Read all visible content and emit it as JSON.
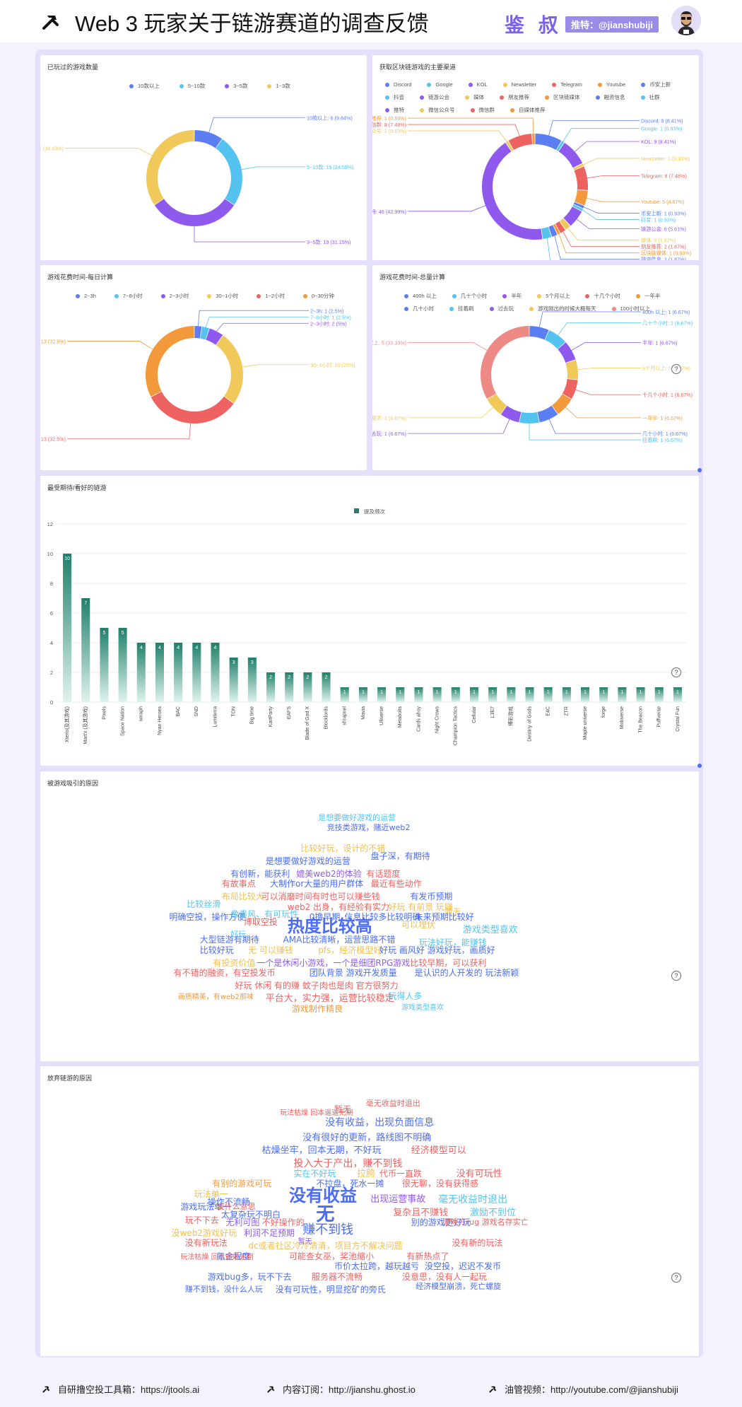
{
  "header": {
    "title": "Web 3 玩家关于链游赛道的调查反馈",
    "brand": "鉴 叔",
    "tuite": "推特：@jianshubiji"
  },
  "panels": {
    "p1_title": "已玩过的游戏数量",
    "p2_title": "获取区块链游戏的主要渠道",
    "p3_title": "游戏花费时间-每日计算",
    "p4_title": "游戏花费时间-总量计算",
    "p5_title": "最受期待/看好的链游",
    "p6_title": "被游戏吸引的原因",
    "p7_title": "放弃链游的原因"
  },
  "donut1": {
    "slices": [
      {
        "name": "10款以上",
        "value": 6,
        "label": "10款以上: 6 (9.84%)",
        "color": "#5b7ff3"
      },
      {
        "name": "5~10款",
        "value": 15,
        "label": "5~10款: 15 (24.59%)",
        "color": "#55c3ef"
      },
      {
        "name": "3~5款",
        "value": 19,
        "label": "3~5款: 19 (31.15%)",
        "color": "#8f59ee"
      },
      {
        "name": "1~3款",
        "value": 21,
        "label": "1~3款: 21 (34.43%)",
        "color": "#f0c95a"
      }
    ]
  },
  "donut2": {
    "slices": [
      {
        "name": "Discord",
        "value": 9,
        "label": "Discord: 9 (8.41%)",
        "color": "#5b7ff3"
      },
      {
        "name": "Google",
        "value": 1,
        "label": "Google: 1 (0.93%)",
        "color": "#55c3ef"
      },
      {
        "name": "KOL",
        "value": 9,
        "label": "KOL: 9 (8.41%)",
        "color": "#8f59ee"
      },
      {
        "name": "Newsletter",
        "value": 1,
        "label": "Newsletter: 1 (0.93%)",
        "color": "#f0c95a"
      },
      {
        "name": "Telegram",
        "value": 8,
        "label": "Telegram: 8 (7.48%)",
        "color": "#ee6262"
      },
      {
        "name": "Youtube",
        "value": 5,
        "label": "Youtube: 5 (4.67%)",
        "color": "#f29a3b"
      },
      {
        "name": "币安上新",
        "value": 1,
        "label": "币安上新: 1 (0.93%)",
        "color": "#5b7ff3"
      },
      {
        "name": "抖音",
        "value": 1,
        "label": "抖音: 1 (0.93%)",
        "color": "#55c3ef"
      },
      {
        "name": "链游公会",
        "value": 6,
        "label": "链游公会: 6 (5.61%)",
        "color": "#8f59ee"
      },
      {
        "name": "媒体",
        "value": 2,
        "label": "媒体: 2 (1.87%)",
        "color": "#f0c95a"
      },
      {
        "name": "朋友推荐",
        "value": 2,
        "label": "朋友推荐: 2 (1.87%)",
        "color": "#ee6262"
      },
      {
        "name": "区块链媒体",
        "value": 1,
        "label": "区块链媒体: 1 (0.93%)",
        "color": "#f29a3b"
      },
      {
        "name": "融资信息",
        "value": 2,
        "label": "融资信息: 2 (1.87%)",
        "color": "#5b7ff3"
      },
      {
        "name": "社群",
        "value": 3,
        "label": "社群: 3 (2.8%)",
        "color": "#55c3ef"
      },
      {
        "name": "推特",
        "value": 46,
        "label": "推特: 46 (42.99%)",
        "color": "#8f59ee"
      },
      {
        "name": "微信公众号",
        "value": 1,
        "label": "微信公众号: 1 (0.93%)",
        "color": "#f0c95a"
      },
      {
        "name": "微信群",
        "value": 8,
        "label": "微信群: 8 (7.48%)",
        "color": "#ee6262"
      },
      {
        "name": "自媒体推荐",
        "value": 1,
        "label": "自媒体推荐: 1 (0.93%)",
        "color": "#f29a3b"
      }
    ]
  },
  "donut3": {
    "slices": [
      {
        "name": "2~3h",
        "value": 1,
        "label": "2~3h: 1 (2.5%)",
        "color": "#5b7ff3"
      },
      {
        "name": "7~8小时",
        "value": 1,
        "label": "7~8小时: 1 (2.5%)",
        "color": "#55c3ef"
      },
      {
        "name": "2~3小时",
        "value": 2,
        "label": "2~3小时: 2 (5%)",
        "color": "#8f59ee"
      },
      {
        "name": "30~1小时",
        "value": 10,
        "label": "30~1小时: 10 (25%)",
        "color": "#f0c95a"
      },
      {
        "name": "1~2小时",
        "value": 13,
        "label": "1~2小时: 13 (32.5%)",
        "color": "#ee6262"
      },
      {
        "name": "0~30分钟",
        "value": 13,
        "label": "0~30分钟: 13 (32.5%)",
        "color": "#f29a3b"
      }
    ]
  },
  "donut4": {
    "slices": [
      {
        "name": "400h 以上",
        "value": 1,
        "label": "400h 以上: 1 (6.67%)",
        "color": "#5b7ff3"
      },
      {
        "name": "几十个小时",
        "value": 1,
        "label": "几十个小时: 1 (6.67%)",
        "color": "#55c3ef"
      },
      {
        "name": "半年",
        "value": 1,
        "label": "半年: 1 (6.67%)",
        "color": "#8f59ee"
      },
      {
        "name": "5个月以上",
        "value": 1,
        "label": "5个月以上: 1 (6.67%)",
        "color": "#f0c95a"
      },
      {
        "name": "十几个小时",
        "value": 1,
        "label": "十几个小时: 1 (6.67%)",
        "color": "#ee6262"
      },
      {
        "name": "一年半",
        "value": 1,
        "label": "一年半: 1 (6.67%)",
        "color": "#f29a3b"
      },
      {
        "name": "几十小时",
        "value": 1,
        "label": "几十小时: 1 (6.67%)",
        "color": "#5b7ff3"
      },
      {
        "name": "挂着刷",
        "value": 1,
        "label": "挂着刷: 1 (6.67%)",
        "color": "#55c3ef"
      },
      {
        "name": "过去玩",
        "value": 1,
        "label": "过去玩: 1 (6.67%)",
        "color": "#8f59ee"
      },
      {
        "name": "游戏刚出的时候大概每天",
        "value": 1,
        "label": "游戏刚出的时候大概每天: 1 (6.67%)",
        "color": "#f0c95a"
      },
      {
        "name": "100小时以上",
        "value": 5,
        "label": "100小时以上: 5 (33.33%)",
        "color": "#ee8a86"
      }
    ]
  },
  "chart_data": {
    "type": "bar",
    "title": "最受期待/看好的链游",
    "series": [
      {
        "name": "提及频次",
        "values": [
          10,
          7,
          5,
          5,
          4,
          4,
          4,
          4,
          4,
          3,
          3,
          2,
          2,
          2,
          2,
          1,
          1,
          1,
          1,
          1,
          1,
          1,
          1,
          1,
          1,
          1,
          1,
          1,
          1,
          1,
          1,
          1,
          1,
          1
        ]
      }
    ],
    "categories": [
      "Xterio(及其游戏)",
      "Mart'x (及其游戏)",
      "Pixels",
      "Space Nation",
      "seraph",
      "Nyan Heroes",
      "BAC",
      "SND",
      "Lumiterra",
      "TON",
      "Big time",
      "KartParty",
      "EAFS",
      "Blade of God X",
      "Blocklords",
      "shrapnel",
      "Mavia",
      "Ulliverse",
      "Metabolts",
      "Cards ahoy",
      "Night Crows",
      "Champion Tactics",
      "Cellular",
      "L3E7",
      "博彩游戏",
      "Destiny of Gods",
      "E4C",
      "ZTR",
      "Maple universe",
      "forge",
      "Mobiverse",
      "The Beacon",
      "Puffverse",
      "Crystal Fun"
    ],
    "ylim": [
      0,
      12
    ],
    "yticks": [
      0,
      2,
      4,
      6,
      8,
      10,
      12
    ],
    "bar_color": "#1f7f6a"
  },
  "cloud1": {
    "words": [
      {
        "t": "热度比较高",
        "c": "#4a6cf7"
      },
      {
        "t": "可以埋伏",
        "c": "#f0c050"
      },
      {
        "t": "游戏类型喜欢",
        "c": "#55c3ef"
      },
      {
        "t": "暂无",
        "c": "#f0c050"
      },
      {
        "t": "大型链游有期待",
        "c": "#4a6cf7"
      },
      {
        "t": "AMA比较清晰，运营思路不错",
        "c": "#4a6cf7"
      },
      {
        "t": "好玩",
        "c": "#55c3ef"
      },
      {
        "t": "玩法好玩，能赚钱",
        "c": "#55c3ef"
      },
      {
        "t": "比较好玩",
        "c": "#4a6cf7"
      },
      {
        "t": "无 可以赚钱",
        "c": "#f0c050"
      },
      {
        "t": "pfs，经济模型好",
        "c": "#f0c050"
      },
      {
        "t": "好玩 画风好 游戏好玩，画质好",
        "c": "#4a6cf7"
      },
      {
        "t": "有投资价值",
        "c": "#f0c050"
      },
      {
        "t": "一个是休闲小游戏，一个是细团RPG游戏",
        "c": "#8f59ee"
      },
      {
        "t": "比较早期，可以获利",
        "c": "#ee6262"
      },
      {
        "t": "有不错的融资，有空投发币",
        "c": "#ee6262"
      },
      {
        "t": "团队背景 游戏开发质量",
        "c": "#4a6cf7"
      },
      {
        "t": "是认识的人开发的 玩法新颖",
        "c": "#4a6cf7"
      },
      {
        "t": "好玩 休闲 有的赚 蚊子肉也是肉 官方很努力",
        "c": "#ee6262"
      },
      {
        "t": "平台大，实力强，运营比较稳定",
        "c": "#ee6262"
      },
      {
        "t": "游戏制作精良",
        "c": "#f29a3b"
      },
      {
        "t": "玩得人多",
        "c": "#55c3ef"
      },
      {
        "t": "画质精美，有web2那味",
        "c": "#f29a3b"
      },
      {
        "t": "明确空投，操作方便",
        "c": "#4a6cf7"
      },
      {
        "t": "博取空投",
        "c": "#ee6262"
      },
      {
        "t": "比较好玩，设计的不错",
        "c": "#f0c050"
      },
      {
        "t": "盘子深，有期待",
        "c": "#4a6cf7"
      },
      {
        "t": "是想要做好游戏的运营",
        "c": "#4a6cf7"
      },
      {
        "t": "有创新，能获利",
        "c": "#4a6cf7"
      },
      {
        "t": "媲美web2的体验",
        "c": "#8f59ee"
      },
      {
        "t": "有话题度",
        "c": "#ee6262"
      },
      {
        "t": "有故事点",
        "c": "#ee6262"
      },
      {
        "t": "大制作or大量的用户群体",
        "c": "#4a6cf7"
      },
      {
        "t": "最近有些动作",
        "c": "#ee6262"
      },
      {
        "t": "可以消磨时间有时也可以赚些钱",
        "c": "#ee6262"
      },
      {
        "t": "布局比较大",
        "c": "#f0c050"
      },
      {
        "t": "web2 出身，有经验有实力",
        "c": "#ee6262"
      },
      {
        "t": "有发币预期",
        "c": "#4a6cf7"
      },
      {
        "t": "比较丝滑",
        "c": "#55c3ef"
      },
      {
        "t": "像素风、有可玩性",
        "c": "#55c3ef"
      },
      {
        "t": "0撸早期",
        "c": "#4a6cf7"
      },
      {
        "t": "信息比较多比较明确",
        "c": "#4a6cf7"
      },
      {
        "t": "未来预期比较好",
        "c": "#4a6cf7"
      },
      {
        "t": "好玩 有前景 玩赚",
        "c": "#f0c050"
      },
      {
        "t": "竞技类游戏，赌近web2",
        "c": "#4a6cf7"
      },
      {
        "t": "是想要做好游戏的运营",
        "c": "#55c3ef"
      },
      {
        "t": "游戏类型喜欢",
        "c": "#55c3ef"
      }
    ]
  },
  "cloud2": {
    "words": [
      {
        "t": "没有收益",
        "c": "#4a6cf7"
      },
      {
        "t": "无",
        "c": "#4a6cf7"
      },
      {
        "t": "赚不到钱",
        "c": "#4a6cf7"
      },
      {
        "t": "没有收益，出现负面信息",
        "c": "#4a6cf7"
      },
      {
        "t": "没有很好的更新，路线图不明确",
        "c": "#4a6cf7"
      },
      {
        "t": "枯燥坐牢，回本无期，不好玩",
        "c": "#4a6cf7"
      },
      {
        "t": "经济模型可以",
        "c": "#ee6262"
      },
      {
        "t": "投入大于产出，赚不到钱",
        "c": "#ee6262"
      },
      {
        "t": "实在不好玩",
        "c": "#55c3ef"
      },
      {
        "t": "拉胯",
        "c": "#f0c050"
      },
      {
        "t": "代币一直跌",
        "c": "#ee6262"
      },
      {
        "t": "没有可玩性",
        "c": "#ee6262"
      },
      {
        "t": "有别的游戏可玩",
        "c": "#f29a3b"
      },
      {
        "t": "不拉盘，死水一摊",
        "c": "#4a6cf7"
      },
      {
        "t": "很无聊，没有获得感",
        "c": "#ee6262"
      },
      {
        "t": "玩法单一",
        "c": "#f0c050"
      },
      {
        "t": "操作不流畅",
        "c": "#4a6cf7"
      },
      {
        "t": "出现运营事故",
        "c": "#8f59ee"
      },
      {
        "t": "毫无收益时退出",
        "c": "#55c3ef"
      },
      {
        "t": "游戏玩法单一",
        "c": "#4a6cf7"
      },
      {
        "t": "太复杂玩不明白",
        "c": "#4a6cf7"
      },
      {
        "t": "复杂且不赚钱",
        "c": "#ee6262"
      },
      {
        "t": "激励不到位",
        "c": "#55c3ef"
      },
      {
        "t": "玩不下去",
        "c": "#ee6262"
      },
      {
        "t": "无利可图",
        "c": "#8f59ee"
      },
      {
        "t": "不好操作的",
        "c": "#ee6262"
      },
      {
        "t": "没web2游戏好玩",
        "c": "#f0c050"
      },
      {
        "t": "利润不足预期",
        "c": "#8f59ee"
      },
      {
        "t": "没有新玩法",
        "c": "#ee6262"
      },
      {
        "t": "dc或者社区冷冷清清，项目方不解决问题",
        "c": "#f0c050"
      },
      {
        "t": "没有新的玩法",
        "c": "#ee6262"
      },
      {
        "t": "氪金程度",
        "c": "#4a6cf7"
      },
      {
        "t": "可能查女巫，奖池缩小",
        "c": "#ee6262"
      },
      {
        "t": "有新热点了",
        "c": "#ee6262"
      },
      {
        "t": "币价太拉跨，越玩越亏",
        "c": "#4a6cf7"
      },
      {
        "t": "没空投，迟迟不发币",
        "c": "#4a6cf7"
      },
      {
        "t": "游戏bug多，玩不下去",
        "c": "#4a6cf7"
      },
      {
        "t": "服务器不流畅",
        "c": "#ee6262"
      },
      {
        "t": "没意思，没有人一起玩",
        "c": "#ee6262"
      },
      {
        "t": "没有可玩性，明显挖矿的旁氏",
        "c": "#4a6cf7"
      },
      {
        "t": "经济模型崩溃，死亡螺旋",
        "c": "#4a6cf7"
      },
      {
        "t": "赚不到钱，没什么人玩",
        "c": "#4a6cf7"
      },
      {
        "t": "毫无收益时退出",
        "c": "#ee6262"
      },
      {
        "t": "暂无",
        "c": "#ee6262"
      },
      {
        "t": "玩法枯燥 回本遥遥无期",
        "c": "#ee6262"
      },
      {
        "t": "没什么意思",
        "c": "#ee6262"
      },
      {
        "t": "别的游戏更好玩",
        "c": "#4a6cf7"
      },
      {
        "t": "暂无",
        "c": "#8f59ee"
      },
      {
        "t": "游戏方rug 游戏名存实亡",
        "c": "#ee6262"
      },
      {
        "t": "玩法枯燥 回本遥遥无期",
        "c": "#ee6262"
      }
    ]
  },
  "footer": {
    "f1": "自研撸空投工具箱：https://jtools.ai",
    "f2": "内容订阅：http://jianshu.ghost.io",
    "f3": "油管视频：http://youtube.com/@jianshubiji"
  }
}
